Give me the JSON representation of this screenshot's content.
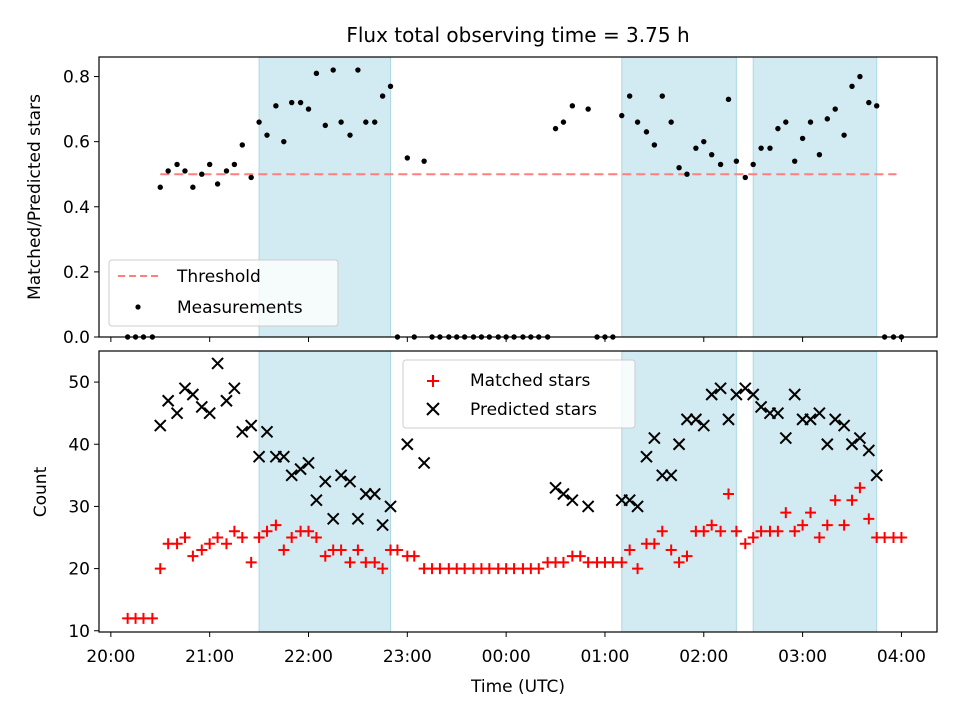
{
  "title": "Flux total observing time = 3.75 h",
  "xlabel": "Time (UTC)",
  "x_tick_labels": [
    "20:00",
    "21:00",
    "22:00",
    "23:00",
    "00:00",
    "01:00",
    "02:00",
    "03:00",
    "04:00"
  ],
  "colors": {
    "threshold": "#ff7f7f",
    "measurement": "#000000",
    "matched": "#ff0000",
    "predicted": "#000000",
    "shade": "#add8e6"
  },
  "chart_data": [
    {
      "type": "scatter",
      "ylabel": "Matched/Predicted stars",
      "y_ticks": [
        "0.0",
        "0.2",
        "0.4",
        "0.6",
        "0.8"
      ],
      "ylim": [
        0,
        0.86
      ],
      "xlim_hours": [
        19.88,
        28.36
      ],
      "shaded_intervals": [
        [
          21.5,
          22.83
        ],
        [
          25.17,
          26.33
        ],
        [
          26.5,
          27.75
        ]
      ],
      "legend": {
        "position": "lower-left",
        "threshold": "Threshold",
        "measurements": "Measurements"
      },
      "threshold": {
        "value": 0.5,
        "x_range": [
          20.5,
          27.95
        ]
      },
      "series": [
        {
          "name": "Measurements",
          "x": [
            20.17,
            20.25,
            20.33,
            20.42,
            20.5,
            20.58,
            20.67,
            20.75,
            20.83,
            20.92,
            21.0,
            21.08,
            21.17,
            21.25,
            21.33,
            21.42,
            21.5,
            21.58,
            21.67,
            21.75,
            21.83,
            21.92,
            22.0,
            22.08,
            22.17,
            22.25,
            22.33,
            22.42,
            22.5,
            22.58,
            22.67,
            22.75,
            22.83,
            22.9,
            23.0,
            23.07,
            23.17,
            23.25,
            23.33,
            23.42,
            23.5,
            23.58,
            23.67,
            23.75,
            23.83,
            23.92,
            24.0,
            24.08,
            24.17,
            24.25,
            24.33,
            24.42,
            24.5,
            24.58,
            24.67,
            24.83,
            24.92,
            25.0,
            25.08,
            25.17,
            25.25,
            25.33,
            25.42,
            25.5,
            25.58,
            25.67,
            25.75,
            25.83,
            25.92,
            26.0,
            26.08,
            26.17,
            26.25,
            26.33,
            26.42,
            26.5,
            26.58,
            26.67,
            26.75,
            26.83,
            26.92,
            27.0,
            27.08,
            27.17,
            27.25,
            27.33,
            27.42,
            27.5,
            27.58,
            27.67,
            27.75,
            27.83,
            27.92,
            28.0
          ],
          "y": [
            0.0,
            0.0,
            0.0,
            0.0,
            0.46,
            0.51,
            0.53,
            0.51,
            0.46,
            0.5,
            0.53,
            0.47,
            0.51,
            0.53,
            0.59,
            0.49,
            0.66,
            0.62,
            0.71,
            0.6,
            0.72,
            0.72,
            0.7,
            0.81,
            0.65,
            0.82,
            0.66,
            0.62,
            0.82,
            0.66,
            0.66,
            0.74,
            0.77,
            0.0,
            0.55,
            0.0,
            0.54,
            0.0,
            0.0,
            0.0,
            0.0,
            0.0,
            0.0,
            0.0,
            0.0,
            0.0,
            0.0,
            0.0,
            0.0,
            0.0,
            0.0,
            0.0,
            0.64,
            0.66,
            0.71,
            0.7,
            0.0,
            0.0,
            0.0,
            0.68,
            0.74,
            0.66,
            0.63,
            0.59,
            0.74,
            0.66,
            0.52,
            0.5,
            0.58,
            0.6,
            0.56,
            0.53,
            0.73,
            0.54,
            0.49,
            0.53,
            0.58,
            0.58,
            0.64,
            0.66,
            0.54,
            0.61,
            0.66,
            0.56,
            0.67,
            0.7,
            0.62,
            0.77,
            0.8,
            0.72,
            0.71,
            0.0,
            0.0,
            0.0
          ]
        }
      ]
    },
    {
      "type": "scatter",
      "ylabel": "Count",
      "y_ticks": [
        "10",
        "20",
        "30",
        "40",
        "50"
      ],
      "ylim": [
        9.8,
        55
      ],
      "xlim_hours": [
        19.88,
        28.36
      ],
      "shaded_intervals": [
        [
          21.5,
          22.83
        ],
        [
          25.17,
          26.33
        ],
        [
          26.5,
          27.75
        ]
      ],
      "legend": {
        "position": "upper-center"
      },
      "series": [
        {
          "name": "Matched stars",
          "x": [
            20.17,
            20.25,
            20.33,
            20.42,
            20.5,
            20.58,
            20.67,
            20.75,
            20.83,
            20.92,
            21.0,
            21.08,
            21.17,
            21.25,
            21.33,
            21.42,
            21.5,
            21.58,
            21.67,
            21.75,
            21.83,
            21.92,
            22.0,
            22.08,
            22.17,
            22.25,
            22.33,
            22.42,
            22.5,
            22.58,
            22.67,
            22.75,
            22.83,
            22.9,
            23.0,
            23.07,
            23.17,
            23.25,
            23.33,
            23.42,
            23.5,
            23.58,
            23.67,
            23.75,
            23.83,
            23.92,
            24.0,
            24.08,
            24.17,
            24.25,
            24.33,
            24.42,
            24.5,
            24.58,
            24.67,
            24.75,
            24.83,
            24.92,
            25.0,
            25.08,
            25.17,
            25.25,
            25.33,
            25.42,
            25.5,
            25.58,
            25.67,
            25.75,
            25.83,
            25.92,
            26.0,
            26.08,
            26.17,
            26.25,
            26.33,
            26.42,
            26.5,
            26.58,
            26.67,
            26.75,
            26.83,
            26.92,
            27.0,
            27.08,
            27.17,
            27.25,
            27.33,
            27.42,
            27.5,
            27.58,
            27.67,
            27.75,
            27.83,
            27.92,
            28.0
          ],
          "y": [
            12,
            12,
            12,
            12,
            20,
            24,
            24,
            25,
            22,
            23,
            24,
            25,
            24,
            26,
            25,
            21,
            25,
            26,
            27,
            23,
            25,
            26,
            26,
            25,
            22,
            23,
            23,
            21,
            23,
            21,
            21,
            20,
            23,
            23,
            22,
            22,
            20,
            20,
            20,
            20,
            20,
            20,
            20,
            20,
            20,
            20,
            20,
            20,
            20,
            20,
            20,
            21,
            21,
            21,
            22,
            22,
            21,
            21,
            21,
            21,
            21,
            23,
            20,
            24,
            24,
            26,
            23,
            21,
            22,
            26,
            26,
            27,
            26,
            32,
            26,
            24,
            25,
            26,
            26,
            26,
            29,
            26,
            27,
            29,
            25,
            27,
            31,
            27,
            31,
            33,
            28,
            25,
            25,
            25,
            25
          ]
        },
        {
          "name": "Predicted stars",
          "x": [
            20.5,
            20.58,
            20.67,
            20.75,
            20.83,
            20.92,
            21.0,
            21.08,
            21.17,
            21.25,
            21.33,
            21.42,
            21.5,
            21.58,
            21.67,
            21.75,
            21.83,
            21.92,
            22.0,
            22.08,
            22.17,
            22.25,
            22.33,
            22.42,
            22.5,
            22.58,
            22.67,
            22.75,
            22.83,
            23.0,
            23.17,
            24.5,
            24.58,
            24.67,
            24.83,
            25.17,
            25.25,
            25.33,
            25.42,
            25.5,
            25.58,
            25.67,
            25.75,
            25.83,
            25.92,
            26.0,
            26.08,
            26.17,
            26.25,
            26.33,
            26.42,
            26.5,
            26.58,
            26.67,
            26.75,
            26.83,
            26.92,
            27.0,
            27.08,
            27.17,
            27.25,
            27.33,
            27.42,
            27.5,
            27.58,
            27.67,
            27.75
          ],
          "y": [
            43,
            47,
            45,
            49,
            48,
            46,
            45,
            53,
            47,
            49,
            42,
            43,
            38,
            42,
            38,
            38,
            35,
            36,
            37,
            31,
            34,
            28,
            35,
            34,
            28,
            32,
            32,
            27,
            30,
            40,
            37,
            33,
            32,
            31,
            30,
            31,
            31,
            30,
            38,
            41,
            35,
            35,
            40,
            44,
            44,
            43,
            48,
            49,
            44,
            48,
            49,
            48,
            46,
            45,
            45,
            41,
            48,
            44,
            44,
            45,
            40,
            44,
            43,
            40,
            41,
            39,
            35
          ]
        }
      ]
    }
  ]
}
